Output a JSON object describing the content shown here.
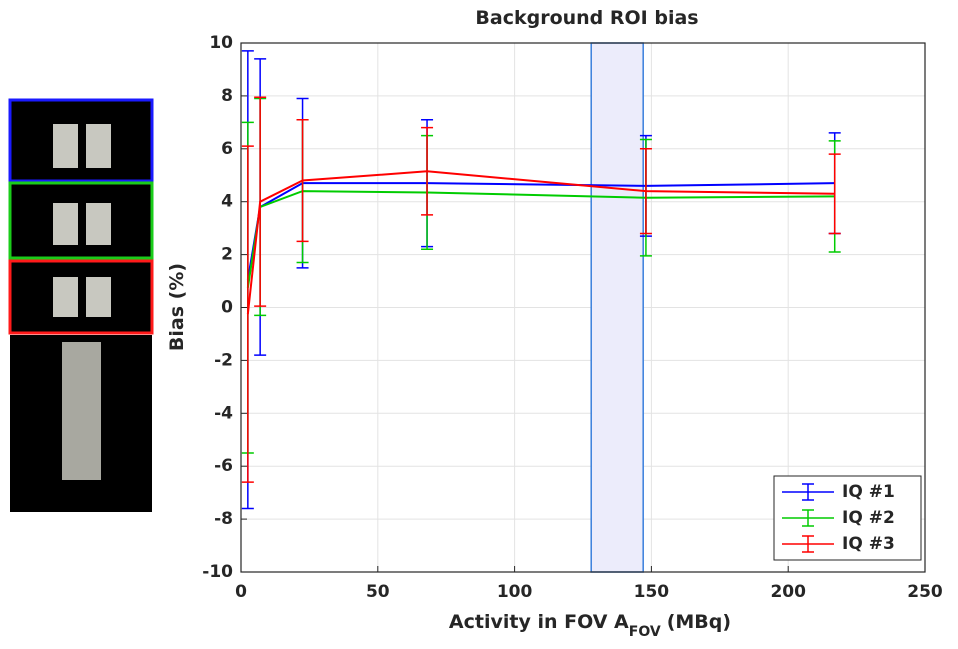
{
  "chart_data": {
    "type": "errorbar-line",
    "title": "Background ROI bias",
    "xlabel": {
      "main": "Activity in FOV A",
      "sub": "FOV",
      "unit": "(MBq)"
    },
    "ylabel": "Bias (%)",
    "x": [
      2.5,
      7,
      22.5,
      68,
      148,
      217
    ],
    "series": [
      {
        "name": "IQ #1",
        "color": "#0000ff",
        "values": [
          1.05,
          3.8,
          4.7,
          4.7,
          4.6,
          4.7
        ],
        "errors": [
          8.65,
          5.6,
          3.2,
          2.4,
          1.9,
          1.9
        ]
      },
      {
        "name": "IQ #2",
        "color": "#00cc00",
        "values": [
          0.75,
          3.8,
          4.4,
          4.35,
          4.15,
          4.2
        ],
        "errors": [
          6.25,
          4.1,
          2.7,
          2.15,
          2.2,
          2.1
        ]
      },
      {
        "name": "IQ #3",
        "color": "#ff0000",
        "values": [
          -0.25,
          4.0,
          4.8,
          5.15,
          4.4,
          4.3
        ],
        "errors": [
          6.35,
          3.95,
          2.3,
          1.65,
          1.6,
          1.5
        ]
      }
    ],
    "shaded_range": [
      128,
      147
    ],
    "shaded_color": "#ececfb",
    "shaded_edge": "#3a7fdc",
    "xlim": [
      0,
      250
    ],
    "xticks": [
      0,
      50,
      100,
      150,
      200,
      250
    ],
    "ylim": [
      -10,
      10
    ],
    "yticks": [
      -10,
      -8,
      -6,
      -4,
      -2,
      0,
      2,
      4,
      6,
      8,
      10
    ],
    "grid": true,
    "legend": "lower right"
  }
}
